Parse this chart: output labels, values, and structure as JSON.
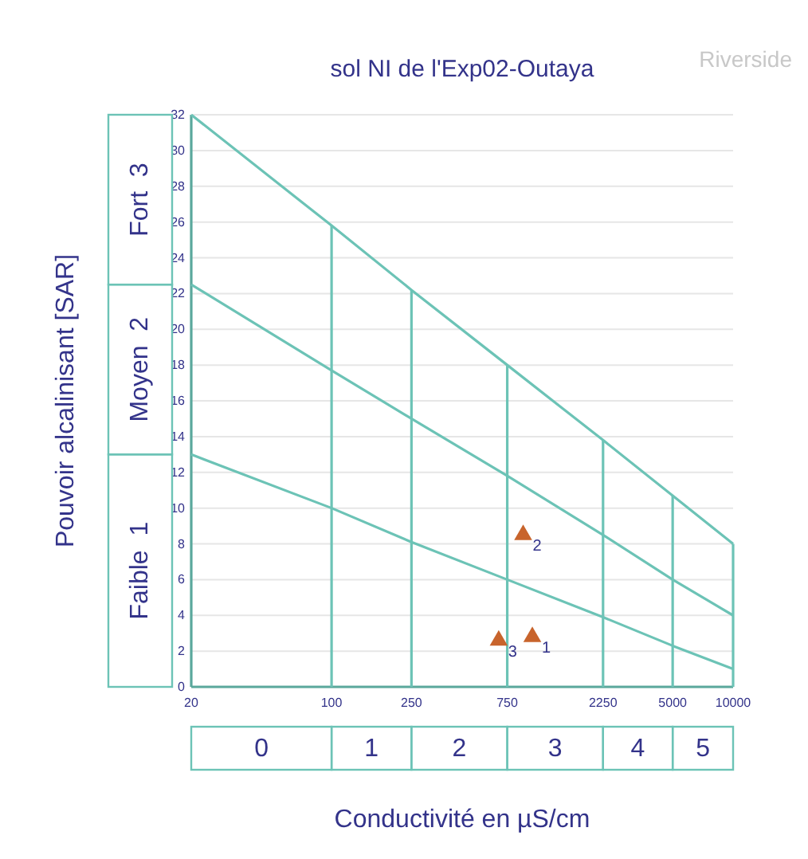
{
  "chart_data": {
    "type": "line",
    "title": "sol NI de l'Exp02-Outaya",
    "xlabel": "Conductivité en µS/cm",
    "ylabel": "Pouvoir alcalinisant [SAR]",
    "log": "x",
    "grid": "y",
    "marker": "none",
    "line_style": "solid",
    "xlim": [
      20,
      10000
    ],
    "xticks": [
      20,
      100,
      250,
      750,
      2250,
      5000,
      10000
    ],
    "ylim": [
      0,
      32
    ],
    "yticks": [
      0,
      2,
      4,
      6,
      8,
      10,
      12,
      14,
      16,
      18,
      20,
      22,
      24,
      26,
      28,
      30,
      32
    ],
    "series": [
      {
        "color": "#6cc3b6",
        "x": [
          20,
          100,
          250,
          750,
          2250,
          5000,
          10000
        ],
        "values": [
          13,
          10,
          8.1,
          6,
          3.9,
          2.3,
          1
        ]
      },
      {
        "color": "#6cc3b6",
        "x": [
          20,
          100,
          250,
          750,
          2250,
          5000,
          10000
        ],
        "values": [
          22.5,
          17.7,
          15,
          11.8,
          8.5,
          6,
          4
        ]
      },
      {
        "color": "#6cc3b6",
        "x": [
          20,
          100,
          250,
          750,
          2250,
          5000,
          10000
        ],
        "values": [
          32,
          25.8,
          22.2,
          18,
          13.8,
          10.7,
          8
        ]
      },
      {
        "color": "#6cc3b6",
        "x": [
          100,
          100
        ],
        "values": [
          0,
          25.8
        ]
      },
      {
        "color": "#6cc3b6",
        "x": [
          250,
          250
        ],
        "values": [
          0,
          22.2
        ]
      },
      {
        "color": "#6cc3b6",
        "x": [
          750,
          750
        ],
        "values": [
          0,
          18
        ]
      },
      {
        "color": "#6cc3b6",
        "x": [
          2250,
          2250
        ],
        "values": [
          0,
          13.8
        ]
      },
      {
        "color": "#6cc3b6",
        "x": [
          5000,
          5000
        ],
        "values": [
          0,
          10.7
        ]
      },
      {
        "color": "#6cc3b6",
        "x": [
          10000,
          10000
        ],
        "values": [
          0,
          8
        ]
      },
      {
        "type": "scatter",
        "marker": "triangle",
        "color": "#c8642c",
        "x": [
          1000,
          900,
          680
        ],
        "values": [
          2.8,
          8.5,
          2.6
        ]
      }
    ],
    "annotations": [
      "Riverside",
      "Faible  1",
      "Moyen  2",
      "Fort  3",
      "0",
      "1",
      "2",
      "3",
      "4",
      "5",
      {
        "text": "1",
        "x": 1000,
        "y": 2.8
      },
      {
        "text": "2",
        "x": 900,
        "y": 8.5
      },
      {
        "text": "3",
        "x": 680,
        "y": 2.6
      }
    ]
  }
}
